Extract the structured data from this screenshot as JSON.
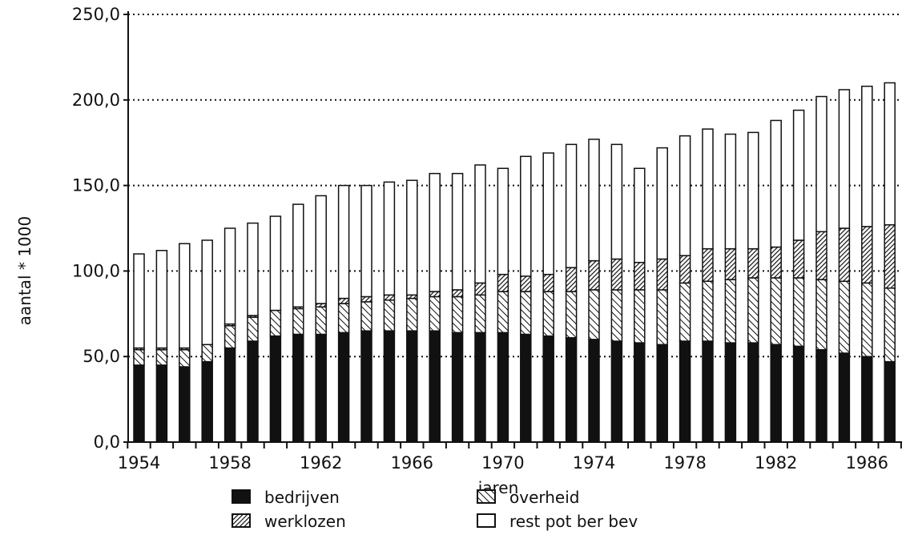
{
  "chart_data": {
    "type": "bar",
    "stacked": true,
    "xlabel": "jaren",
    "ylabel": "aantal * 1000",
    "ylim": [
      0,
      250
    ],
    "yticks": [
      "0,0",
      "50,0",
      "100,0",
      "150,0",
      "200,0",
      "250,0"
    ],
    "xticks": [
      "1954",
      "1958",
      "1962",
      "1966",
      "1970",
      "1974",
      "1978",
      "1982",
      "1986"
    ],
    "grid": "horizontal dotted",
    "legend_position": "bottom",
    "categories": [
      "1954",
      "1955",
      "1956",
      "1957",
      "1958",
      "1959",
      "1960",
      "1961",
      "1962",
      "1963",
      "1964",
      "1965",
      "1966",
      "1967",
      "1968",
      "1969",
      "1970",
      "1971",
      "1972",
      "1973",
      "1974",
      "1975",
      "1976",
      "1977",
      "1978",
      "1979",
      "1980",
      "1981",
      "1982",
      "1983",
      "1984",
      "1985",
      "1986",
      "1987"
    ],
    "series": [
      {
        "name": "bedrijven",
        "pattern": "solid",
        "values": [
          45,
          45,
          44,
          47,
          55,
          59,
          62,
          63,
          63,
          64,
          65,
          65,
          65,
          65,
          64,
          64,
          64,
          63,
          62,
          61,
          60,
          59,
          58,
          57,
          59,
          59,
          58,
          58,
          57,
          56,
          54,
          52,
          50,
          47
        ]
      },
      {
        "name": "overheid",
        "pattern": "diagonal-hatch",
        "values": [
          9,
          9,
          10,
          10,
          13,
          14,
          15,
          15,
          16,
          17,
          17,
          18,
          19,
          20,
          21,
          22,
          24,
          25,
          26,
          27,
          29,
          30,
          31,
          32,
          34,
          35,
          37,
          38,
          39,
          40,
          41,
          42,
          43,
          43
        ]
      },
      {
        "name": "werklozen",
        "pattern": "dense-hatch",
        "values": [
          1,
          1,
          1,
          0,
          1,
          1,
          0,
          1,
          2,
          3,
          3,
          3,
          2,
          3,
          4,
          7,
          10,
          9,
          10,
          14,
          17,
          18,
          16,
          18,
          16,
          19,
          18,
          17,
          18,
          22,
          28,
          31,
          33,
          37
        ]
      },
      {
        "name": "rest pot ber bev",
        "pattern": "empty",
        "values": [
          55,
          57,
          61,
          61,
          56,
          54,
          55,
          60,
          63,
          66,
          65,
          66,
          67,
          69,
          68,
          69,
          62,
          70,
          71,
          72,
          71,
          67,
          55,
          65,
          70,
          70,
          67,
          68,
          74,
          76,
          79,
          81,
          82,
          83
        ]
      }
    ]
  },
  "colors": {
    "ink": "#111111",
    "background": "#ffffff"
  }
}
